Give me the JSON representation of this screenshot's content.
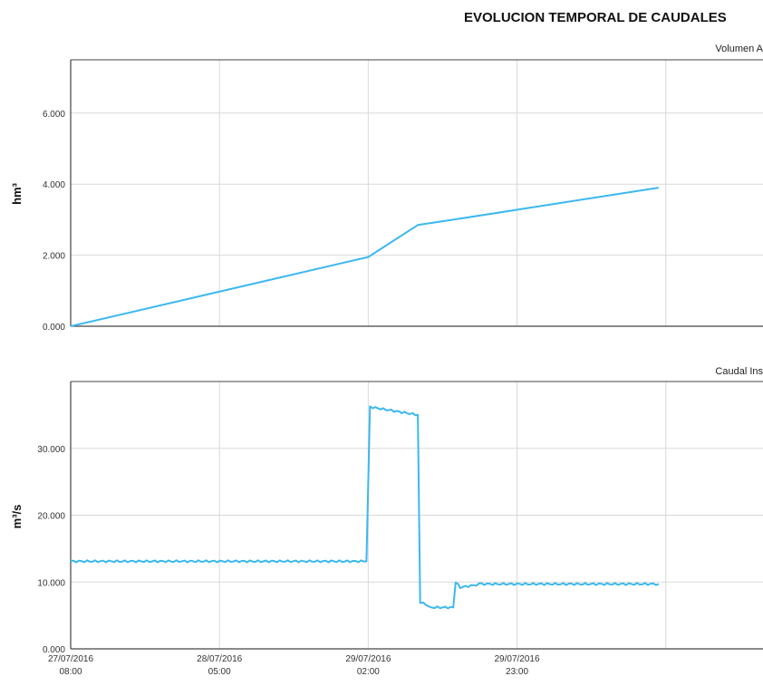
{
  "page": {
    "title": "EVOLUCION TEMPORAL DE CAUDALES"
  },
  "colors": {
    "series": "#3bb8ef",
    "grid": "#d9d9d9",
    "frame": "#444444"
  },
  "chart_data": [
    {
      "type": "line",
      "subtitle": "Volumen A",
      "ylabel": "hm³",
      "ylim": [
        0,
        7.5
      ],
      "yticks": [
        0,
        2,
        4,
        6
      ],
      "ytick_labels": [
        "0.000",
        "2.000",
        "4.000",
        "6.000"
      ],
      "grid": true,
      "series": [
        {
          "x": [
            "2016-07-27 08:00",
            "2016-07-29 02:00",
            "2016-07-29 09:00",
            "2016-07-29 14:00",
            "2016-07-30 19:00"
          ],
          "y": [
            0.0,
            1.95,
            2.85,
            3.0,
            3.9
          ]
        }
      ]
    },
    {
      "type": "line",
      "subtitle": "Caudal Ins",
      "ylabel": "m³/s",
      "ylim": [
        0,
        40
      ],
      "yticks": [
        0,
        10,
        20,
        30
      ],
      "ytick_labels": [
        "0.000",
        "10.000",
        "20.000",
        "30.000"
      ],
      "grid": true,
      "x_tick_dates": [
        "27/07/2016",
        "28/07/2016",
        "29/07/2016",
        "29/07/2016"
      ],
      "x_tick_times": [
        "08:00",
        "05:00",
        "02:00",
        "23:00"
      ],
      "series": [
        {
          "x": [
            "2016-07-27 08:00",
            "2016-07-29 01:45",
            "2016-07-29 02:15",
            "2016-07-29 09:00",
            "2016-07-29 09:20",
            "2016-07-29 11:00",
            "2016-07-29 14:00",
            "2016-07-29 14:20",
            "2016-07-29 15:00",
            "2016-07-29 18:00",
            "2016-07-30 19:00"
          ],
          "y": [
            13.1,
            13.1,
            36.2,
            35.0,
            7.0,
            6.2,
            6.2,
            10.0,
            9.2,
            9.7,
            9.7
          ]
        }
      ]
    }
  ]
}
